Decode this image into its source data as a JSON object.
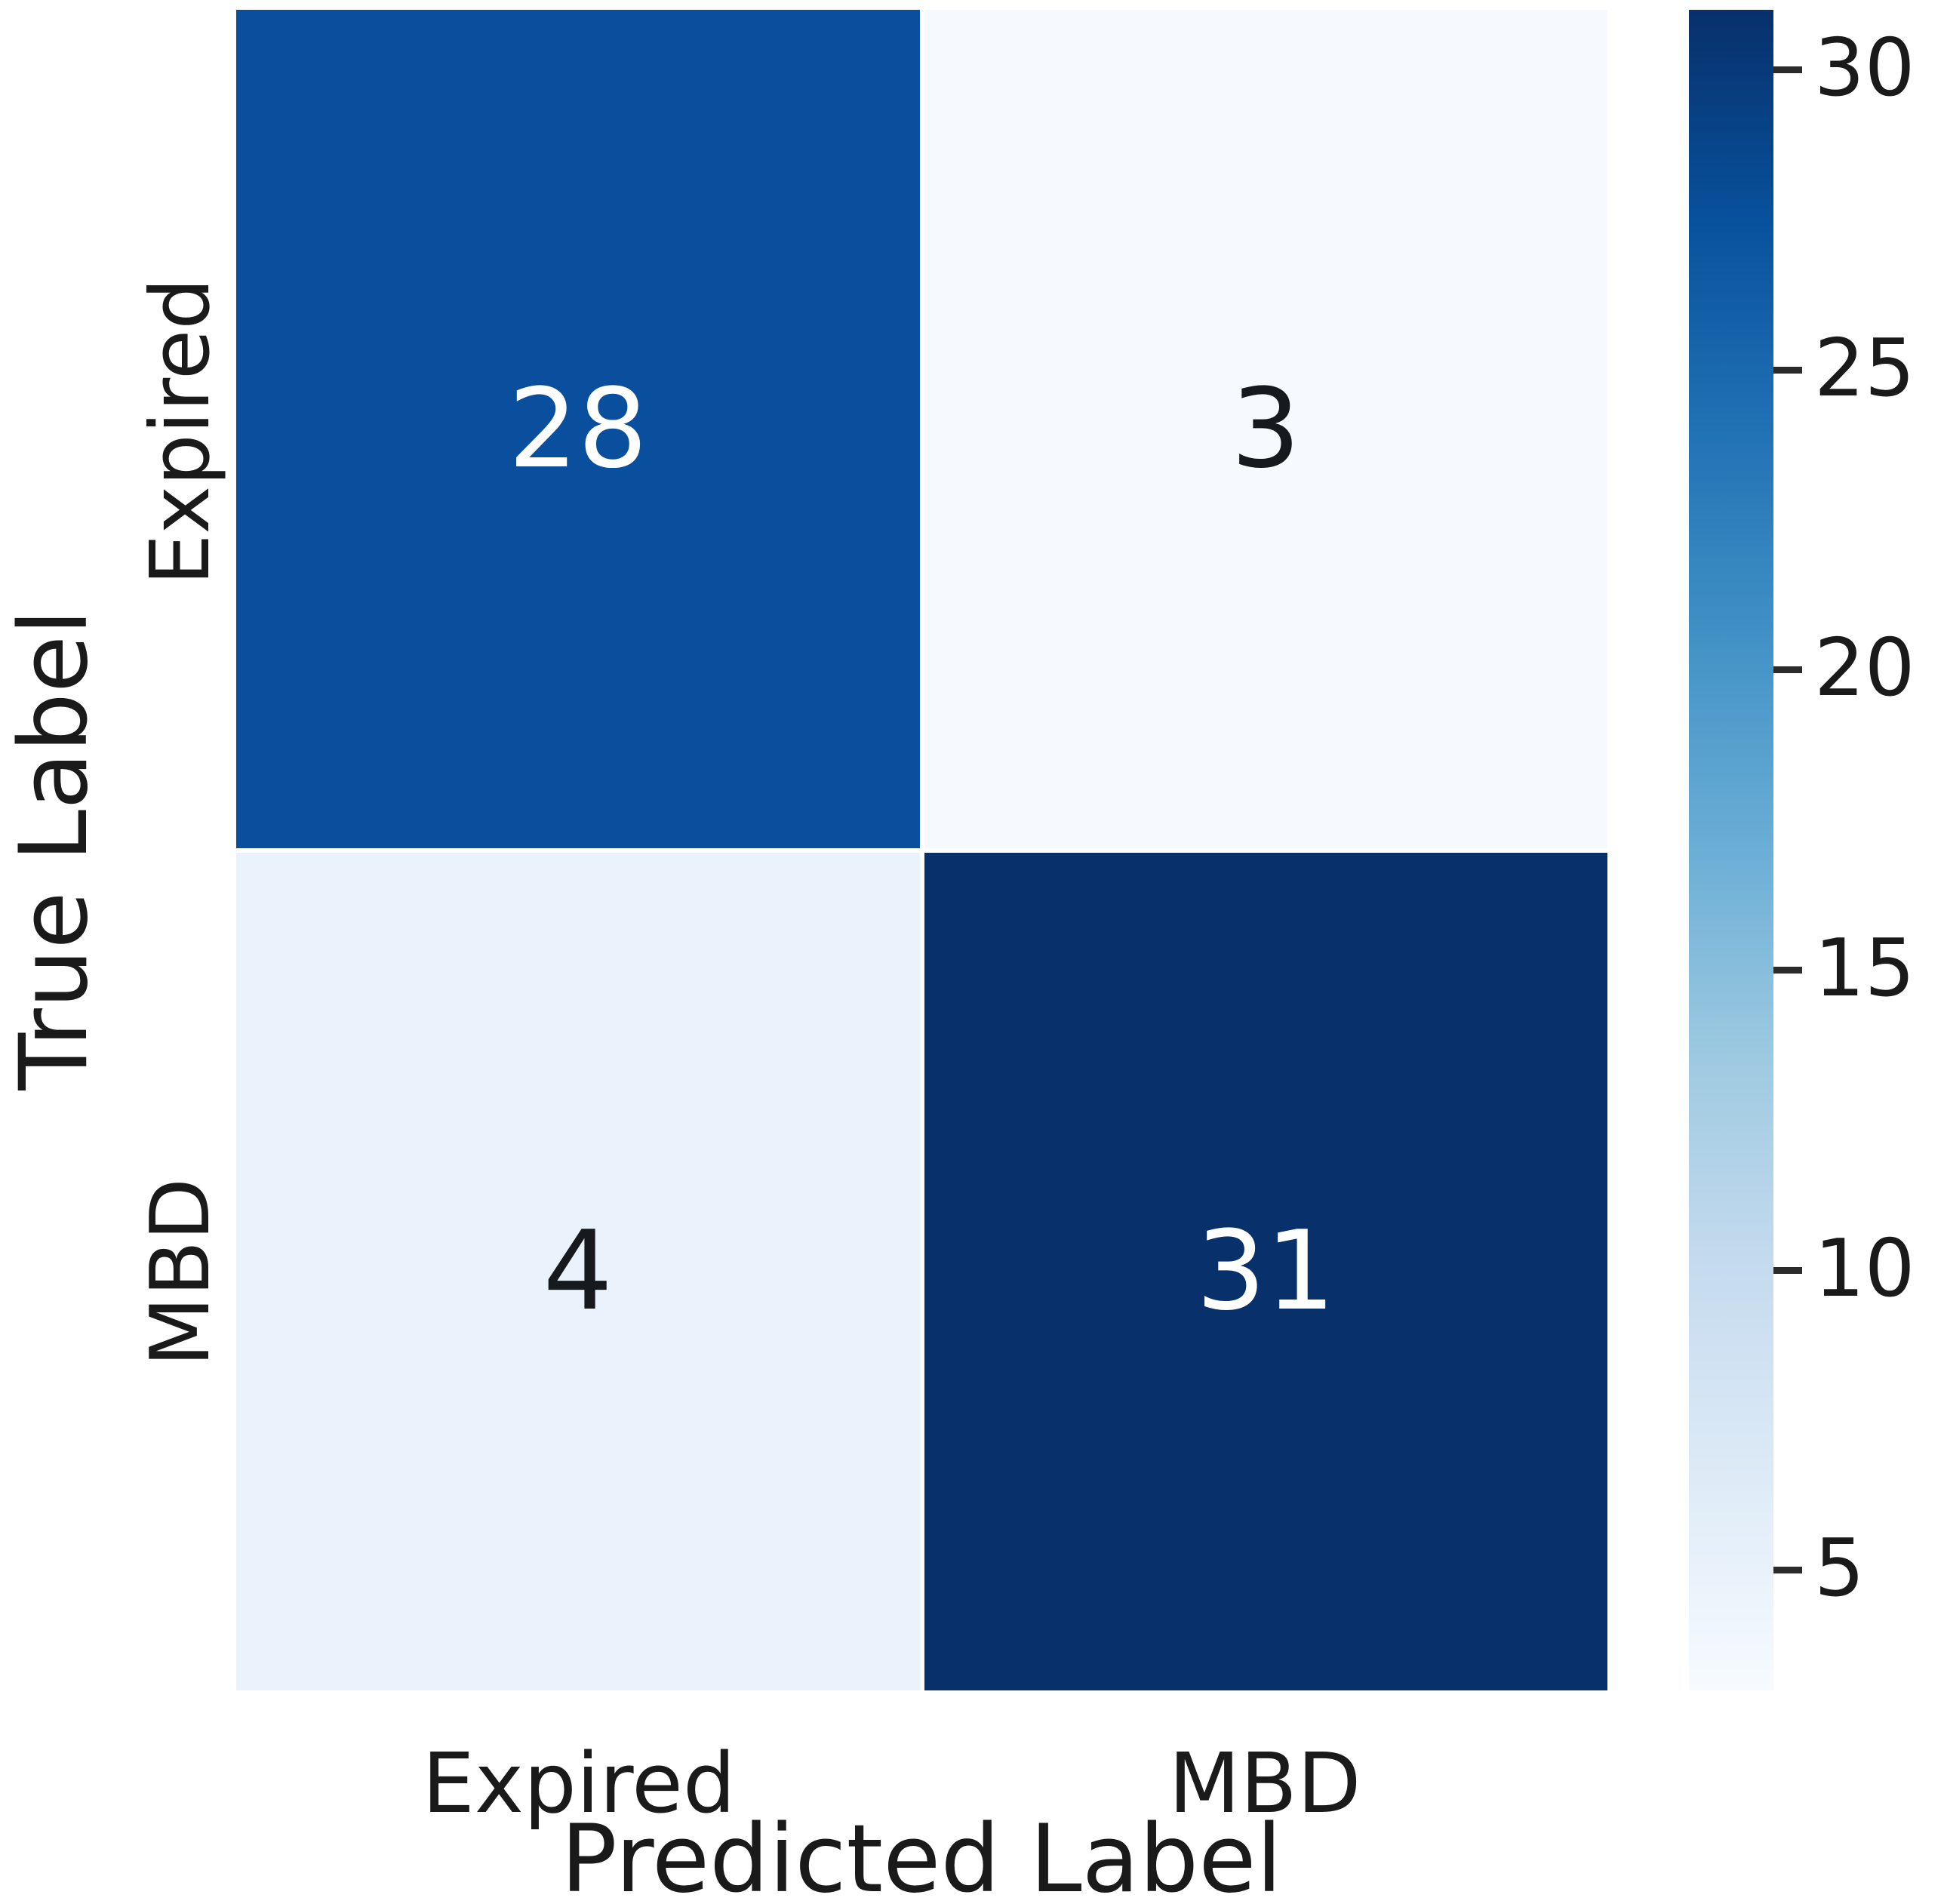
{
  "chart_data": {
    "type": "heatmap",
    "subtype": "confusion-matrix",
    "title": "",
    "xlabel": "Predicted Label",
    "ylabel": "True Label",
    "x_categories": [
      "Expired",
      "MBD"
    ],
    "y_categories": [
      "Expired",
      "MBD"
    ],
    "matrix": [
      [
        28,
        3
      ],
      [
        4,
        31
      ]
    ],
    "cells": [
      {
        "true": "Expired",
        "predicted": "Expired",
        "value": "28",
        "bg": "#0a4f9e",
        "fg": "#ffffff"
      },
      {
        "true": "Expired",
        "predicted": "MBD",
        "value": "3",
        "bg": "#f6fafe",
        "fg": "#16191e"
      },
      {
        "true": "MBD",
        "predicted": "Expired",
        "value": "4",
        "bg": "#eaf2fb",
        "fg": "#16191e"
      },
      {
        "true": "MBD",
        "predicted": "MBD",
        "value": "31",
        "bg": "#08306b",
        "fg": "#ffffff"
      }
    ],
    "colorbar": {
      "vmin": 3,
      "vmax": 31,
      "ticks": [
        30,
        25,
        20,
        15,
        10,
        5
      ],
      "colormap": "Blues",
      "color_top": "#08306b",
      "color_bottom": "#f7fbff",
      "position": "right"
    },
    "grid": false,
    "legend_position": "none"
  }
}
